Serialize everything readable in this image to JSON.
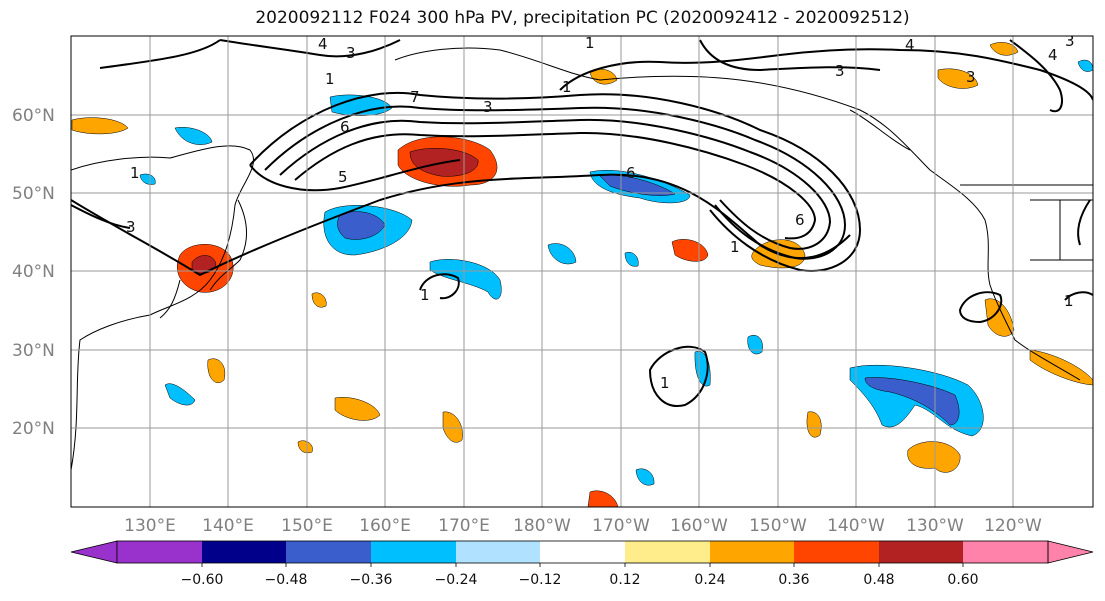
{
  "title": "2020092112 F024 300 hPa PV, precipitation PC (2020092412 - 2020092512)",
  "map": {
    "lat_labels": [
      "60°N",
      "50°N",
      "40°N",
      "30°N",
      "20°N"
    ],
    "lon_labels": [
      "130°E",
      "140°E",
      "150°E",
      "160°E",
      "170°E",
      "180°W",
      "170°W",
      "160°W",
      "150°W",
      "140°W",
      "130°W",
      "120°W"
    ],
    "contour_labels": [
      "4",
      "3",
      "1",
      "3",
      "1",
      "6",
      "5",
      "7",
      "3",
      "1",
      "6",
      "6",
      "1",
      "1",
      "1",
      "1",
      "3",
      "3",
      "4",
      "3",
      "4",
      "1"
    ],
    "grid": "on"
  },
  "colorbar": {
    "ticks": [
      "−0.60",
      "−0.48",
      "−0.36",
      "−0.24",
      "−0.12",
      "0.12",
      "0.24",
      "0.36",
      "0.48",
      "0.60"
    ],
    "colors": [
      "#9932cc",
      "#00008b",
      "#3a5fcd",
      "#00bfff",
      "#b0e2ff",
      "#ffffff",
      "#ffec8b",
      "#ffa500",
      "#ff4500",
      "#b22222",
      "#ff82ab"
    ]
  }
}
